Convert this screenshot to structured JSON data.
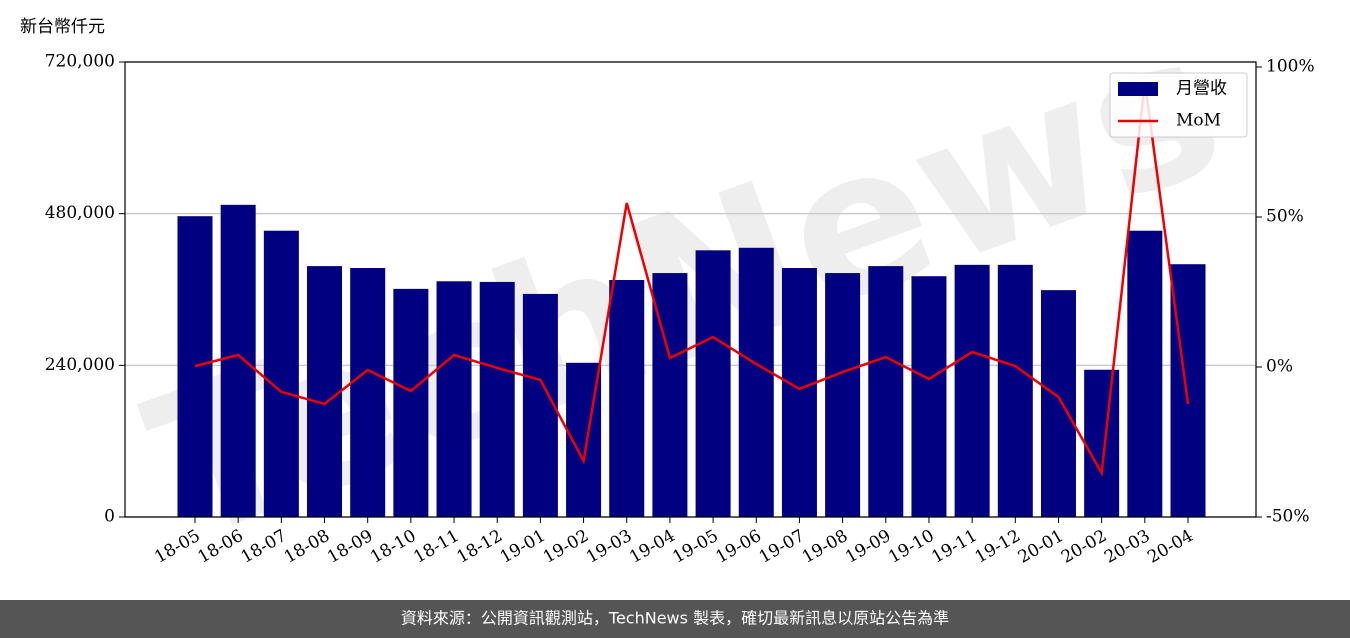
{
  "chart_data": {
    "type": "bar_line",
    "y_axis_label": "新台幣仟元",
    "watermark": "TechNews",
    "footer": "資料來源：公開資訊觀測站，TechNews 製表，確切最新訊息以原站公告為準",
    "categories": [
      "18-05",
      "18-06",
      "18-07",
      "18-08",
      "18-09",
      "18-10",
      "18-11",
      "18-12",
      "19-01",
      "19-02",
      "19-03",
      "19-04",
      "19-05",
      "19-06",
      "19-07",
      "19-08",
      "19-09",
      "19-10",
      "19-11",
      "19-12",
      "20-01",
      "20-02",
      "20-03",
      "20-04"
    ],
    "series": [
      {
        "name": "月營收",
        "type": "bar",
        "color": "#000080",
        "values": [
          476000,
          494000,
          453000,
          397000,
          394000,
          361000,
          373000,
          372000,
          353000,
          244000,
          375000,
          386000,
          422000,
          426000,
          394000,
          386000,
          397000,
          381000,
          399000,
          399000,
          359000,
          233000,
          453000,
          400000
        ]
      },
      {
        "name": "MoM",
        "type": "line",
        "axis": "y2",
        "color": "#ee0000",
        "values": [
          0.3,
          4,
          -8.3,
          -12.3,
          -1,
          -8,
          4,
          -0.3,
          -4.3,
          -31.3,
          54.7,
          3,
          10,
          1,
          -7.3,
          -1.7,
          3.3,
          -4,
          5,
          0.3,
          -10,
          -35.3,
          95,
          -12.3
        ]
      }
    ],
    "ylim": [
      0,
      720000
    ],
    "yticks": [
      0,
      {
        "value": 240000,
        "label": "240,000"
      },
      {
        "value": 480000,
        "label": "480,000"
      },
      {
        "value": 720000,
        "label": "720,000"
      }
    ],
    "y2lim": [
      -50,
      101.67
    ],
    "y2ticks": [
      {
        "value": -50,
        "label": "-50%"
      },
      {
        "value": 0,
        "label": "0%"
      },
      {
        "value": 50,
        "label": "50%"
      },
      {
        "value": 100,
        "label": "100%"
      }
    ],
    "grid": true,
    "legend": "upper right"
  }
}
